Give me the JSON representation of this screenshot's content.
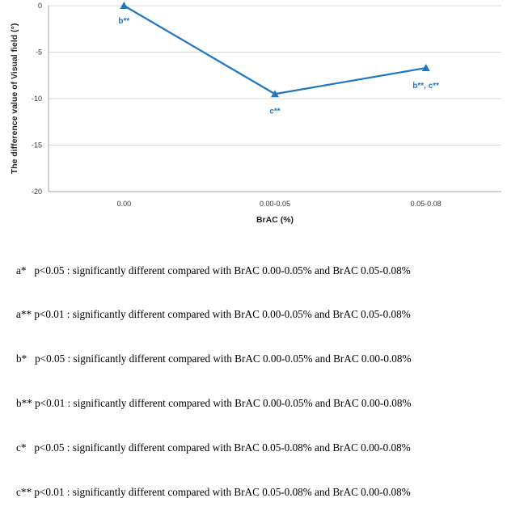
{
  "chart_data": {
    "type": "line",
    "categories": [
      "0.00",
      "0.00-0.05",
      "0.05-0.08"
    ],
    "series": [
      {
        "values": [
          0,
          -9.5,
          -6.7
        ],
        "color": "#1f77c4",
        "marker": "triangle"
      }
    ],
    "data_labels": [
      "b**",
      "c**",
      "b**, c**"
    ],
    "xlabel": "BrAC (%)",
    "ylabel": "The difference value of Visual field (°)",
    "yticks": [
      0,
      -5,
      -10,
      -15,
      -20
    ],
    "ylim": [
      -20,
      0
    ],
    "grid": true,
    "legend": "none",
    "colors": {
      "series": "#1f77c4",
      "labels": "#1f77c4",
      "grid": "#d9d9d9",
      "axis": "#a6a6a6"
    }
  },
  "footnotes": [
    "a*   p<0.05 : significantly different compared with BrAC 0.00-0.05% and BrAC 0.05-0.08%",
    "a** p<0.01 : significantly different compared with BrAC 0.00-0.05% and BrAC 0.05-0.08%",
    "b*   p<0.05 : significantly different compared with BrAC 0.00-0.05% and BrAC 0.00-0.08%",
    "b** p<0.01 : significantly different compared with BrAC 0.00-0.05% and BrAC 0.00-0.08%",
    "c*   p<0.05 : significantly different compared with BrAC 0.05-0.08% and BrAC 0.00-0.08%",
    "c** p<0.01 : significantly different compared with BrAC 0.05-0.08% and BrAC 0.00-0.08%"
  ]
}
